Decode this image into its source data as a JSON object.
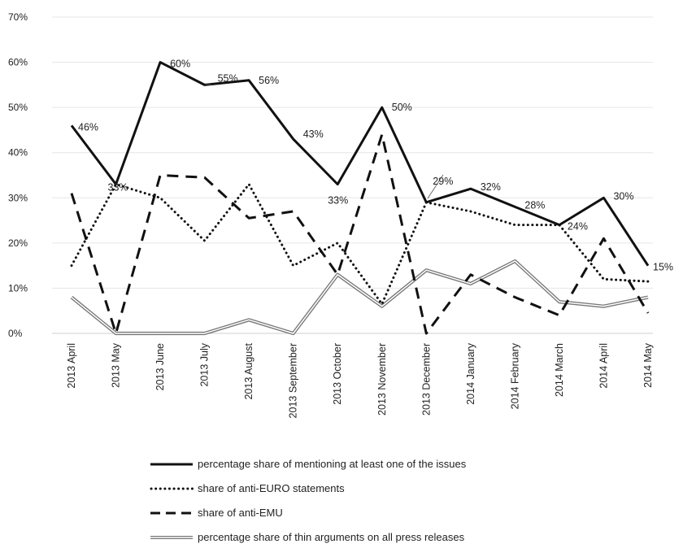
{
  "chart_data": {
    "type": "line",
    "categories": [
      "2013 April",
      "2013 May",
      "2013 June",
      "2013 July",
      "2013 August",
      "2013 September",
      "2013 October",
      "2013 November",
      "2013 December",
      "2014 January",
      "2014 February",
      "2014 March",
      "2014 April",
      "2014 May"
    ],
    "yticks": [
      "0%",
      "10%",
      "20%",
      "30%",
      "40%",
      "50%",
      "60%",
      "70%"
    ],
    "ylim": [
      0,
      70
    ],
    "grid": true,
    "legend_position": "bottom",
    "series": [
      {
        "name": "percentage share of mentioning at least one of the issues",
        "style": "solid",
        "color": "#111111",
        "values": [
          46,
          33,
          60,
          55,
          56,
          43,
          33,
          50,
          29,
          32,
          28,
          24,
          30,
          15
        ]
      },
      {
        "name": "share of anti-EURO statements",
        "style": "dotted",
        "color": "#111111",
        "values": [
          15,
          33,
          30,
          20.5,
          33,
          15,
          20,
          6.5,
          29,
          27,
          24,
          24,
          12,
          11.5
        ]
      },
      {
        "name": "share of anti-EMU",
        "style": "dashed",
        "color": "#111111",
        "values": [
          31,
          0,
          35,
          34.5,
          25.5,
          27,
          13,
          44,
          0,
          13,
          8,
          4,
          21,
          4.5
        ]
      },
      {
        "name": "percentage share of thin arguments on all press releases",
        "style": "double",
        "color": "#777777",
        "values": [
          8,
          0,
          0,
          0,
          3,
          0,
          13,
          6,
          14,
          11,
          16,
          7,
          6,
          8
        ]
      }
    ],
    "data_labels": [
      "46%",
      "33%",
      "60%",
      "55%",
      "56%",
      "43%",
      "33%",
      "50%",
      "29%",
      "32%",
      "28%",
      "24%",
      "30%",
      "15%"
    ]
  }
}
